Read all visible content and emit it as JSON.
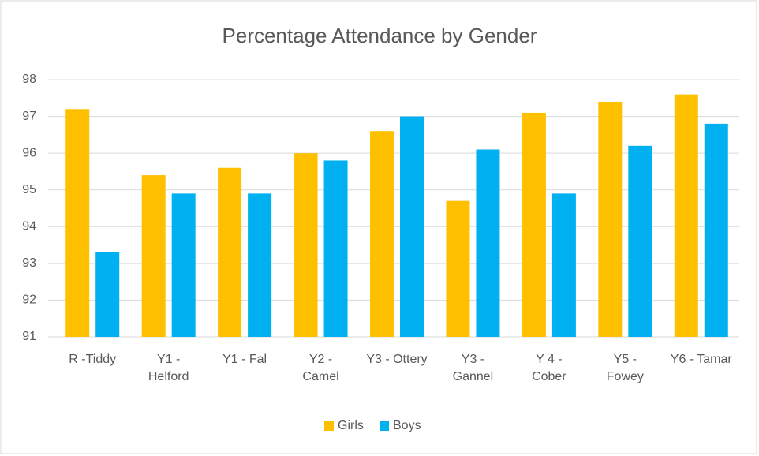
{
  "chart_data": {
    "type": "bar",
    "title": "Percentage Attendance by Gender",
    "categories": [
      "R -Tiddy",
      "Y1 - Helford",
      "Y1 - Fal",
      "Y2 - Camel",
      "Y3 - Ottery",
      "Y3 - Gannel",
      "Y 4 - Cober",
      "Y5 - Fowey",
      "Y6 - Tamar"
    ],
    "series": [
      {
        "name": "Girls",
        "color": "#ffc000",
        "values": [
          97.2,
          95.4,
          95.6,
          96.0,
          96.6,
          94.7,
          97.1,
          97.4,
          97.6
        ]
      },
      {
        "name": "Boys",
        "color": "#00b0f0",
        "values": [
          93.3,
          94.9,
          94.9,
          95.8,
          97.0,
          96.1,
          94.9,
          96.2,
          96.8
        ]
      }
    ],
    "ylim": [
      91,
      98
    ],
    "yticks": [
      91,
      92,
      93,
      94,
      95,
      96,
      97,
      98
    ],
    "grid": true,
    "legend": "bottom"
  }
}
